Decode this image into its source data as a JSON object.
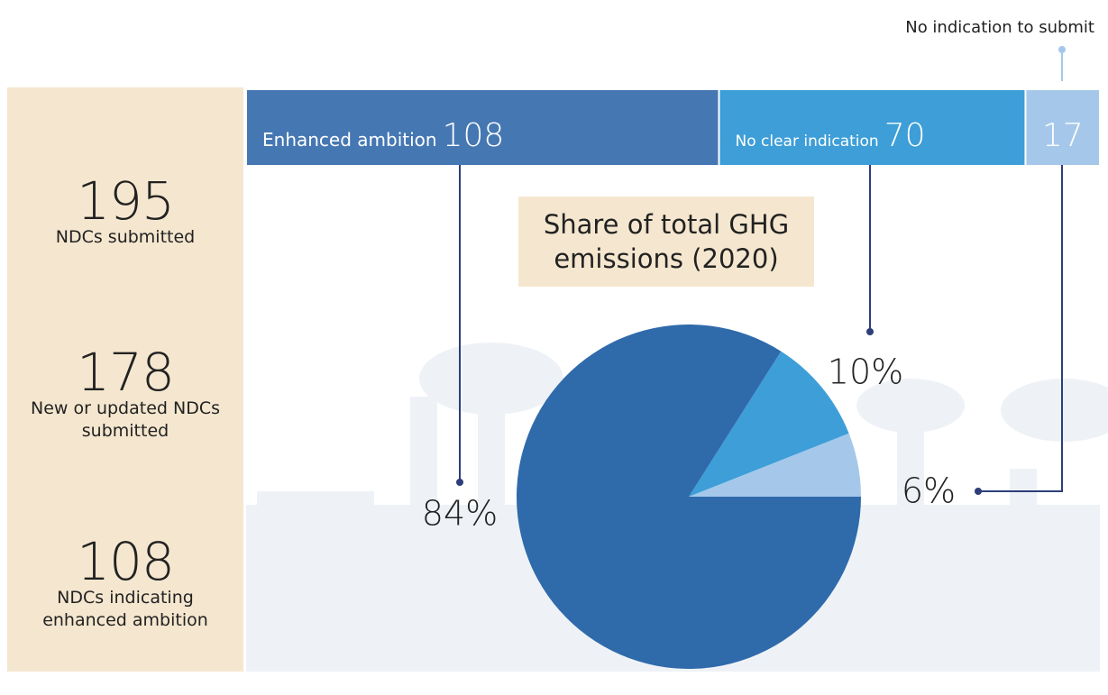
{
  "stats": [
    {
      "value": "195",
      "label": "NDCs submitted"
    },
    {
      "value": "178",
      "label": "New or updated NDCs submitted"
    },
    {
      "value": "108",
      "label": "NDCs indicating enhanced ambition"
    }
  ],
  "chart_data": [
    {
      "type": "stacked-bar",
      "series": [
        {
          "name": "Enhanced ambition",
          "color": "#4577b3",
          "values": [
            108
          ]
        },
        {
          "name": "No clear indication",
          "color": "#3d9ed8",
          "values": [
            70
          ]
        },
        {
          "name": "No indication to submit",
          "color": "#a5c8ea",
          "values": [
            17
          ]
        }
      ]
    },
    {
      "type": "pie",
      "title": "Share of total GHG emissions (2020)",
      "values": [
        84,
        10,
        6
      ],
      "value_labels": [
        "84%",
        "10%",
        "6%"
      ],
      "colors": [
        "#2f6aab",
        "#3d9ed8",
        "#a5c8ea"
      ]
    }
  ]
}
